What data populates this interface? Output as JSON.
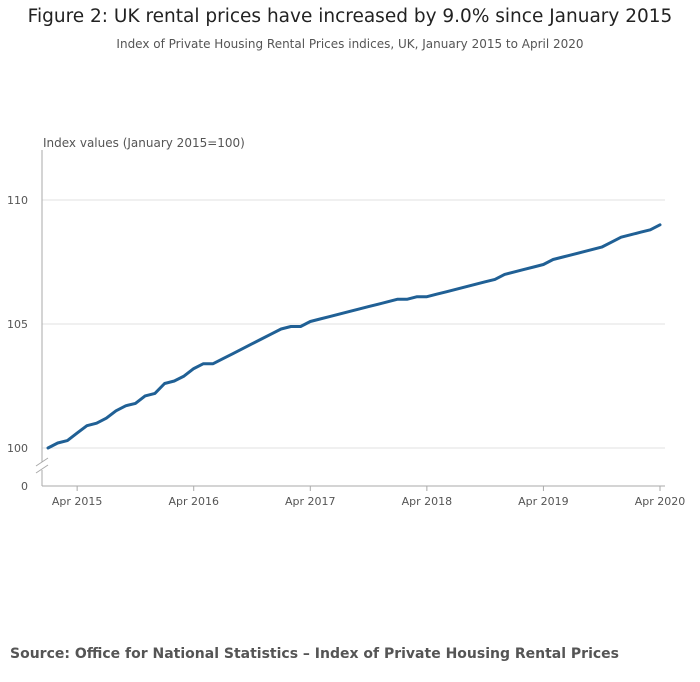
{
  "title": "Figure 2: UK rental prices have increased by 9.0% since January 2015",
  "subtitle": "Index of Private Housing Rental Prices indices, UK, January 2015 to April 2020",
  "source": "Source: Office for National Statistics – Index of Private Housing Rental Prices",
  "colors": {
    "line": "#206095",
    "grid": "#e2e2e2",
    "axis": "#aaaaaa"
  },
  "chart_data": {
    "type": "line",
    "ylabel": "Index values (January 2015=100)",
    "xlabel": "",
    "ylim": [
      100,
      112
    ],
    "y_axis_break": true,
    "y_ticks": [
      {
        "label": "110",
        "value": 110
      },
      {
        "label": "105",
        "value": 105
      },
      {
        "label": "100",
        "value": 100
      },
      {
        "label": "0",
        "value": 0
      }
    ],
    "x_ticks": [
      "Apr 2015",
      "Apr 2016",
      "Apr 2017",
      "Apr 2018",
      "Apr 2019",
      "Apr 2020"
    ],
    "grid": true,
    "series": [
      {
        "x": [
          "Jan 2015",
          "Feb 2015",
          "Mar 2015",
          "Apr 2015",
          "May 2015",
          "Jun 2015",
          "Jul 2015",
          "Aug 2015",
          "Sep 2015",
          "Oct 2015",
          "Nov 2015",
          "Dec 2015",
          "Jan 2016",
          "Feb 2016",
          "Mar 2016",
          "Apr 2016",
          "May 2016",
          "Jun 2016",
          "Jul 2016",
          "Aug 2016",
          "Sep 2016",
          "Oct 2016",
          "Nov 2016",
          "Dec 2016",
          "Jan 2017",
          "Feb 2017",
          "Mar 2017",
          "Apr 2017",
          "May 2017",
          "Jun 2017",
          "Jul 2017",
          "Aug 2017",
          "Sep 2017",
          "Oct 2017",
          "Nov 2017",
          "Dec 2017",
          "Jan 2018",
          "Feb 2018",
          "Mar 2018",
          "Apr 2018",
          "May 2018",
          "Jun 2018",
          "Jul 2018",
          "Aug 2018",
          "Sep 2018",
          "Oct 2018",
          "Nov 2018",
          "Dec 2018",
          "Jan 2019",
          "Feb 2019",
          "Mar 2019",
          "Apr 2019",
          "May 2019",
          "Jun 2019",
          "Jul 2019",
          "Aug 2019",
          "Sep 2019",
          "Oct 2019",
          "Nov 2019",
          "Dec 2019",
          "Jan 2020",
          "Feb 2020",
          "Mar 2020",
          "Apr 2020"
        ],
        "values": [
          100.0,
          100.2,
          100.3,
          100.6,
          100.9,
          101.0,
          101.2,
          101.5,
          101.7,
          101.8,
          102.1,
          102.2,
          102.6,
          102.7,
          102.9,
          103.2,
          103.4,
          103.4,
          103.6,
          103.8,
          104.0,
          104.2,
          104.4,
          104.6,
          104.8,
          104.9,
          104.9,
          105.1,
          105.2,
          105.3,
          105.4,
          105.5,
          105.6,
          105.7,
          105.8,
          105.9,
          106.0,
          106.0,
          106.1,
          106.1,
          106.2,
          106.3,
          106.4,
          106.5,
          106.6,
          106.7,
          106.8,
          107.0,
          107.1,
          107.2,
          107.3,
          107.4,
          107.6,
          107.7,
          107.8,
          107.9,
          108.0,
          108.1,
          108.3,
          108.5,
          108.6,
          108.7,
          108.8,
          109.0
        ]
      }
    ]
  }
}
